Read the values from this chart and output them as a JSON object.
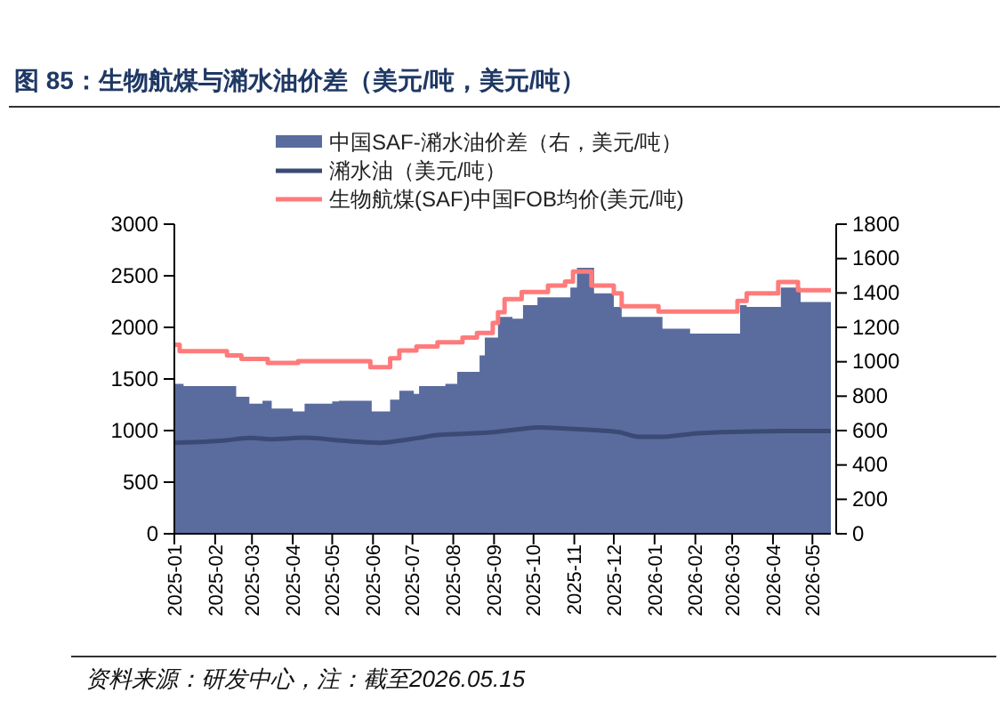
{
  "chart_data": {
    "type": "line",
    "title": "图 85：生物航煤与潲水油价差（美元/吨，美元/吨）",
    "annotations": [
      "资料来源：研发中心，注：截至2026.05.15"
    ],
    "xlim": [
      "2025-01-01",
      "2026-05-15"
    ],
    "xticks": [
      "2025-01",
      "2025-02",
      "2025-03",
      "2025-04",
      "2025-05",
      "2025-06",
      "2025-07",
      "2025-08",
      "2025-09",
      "2025-10",
      "2025-11",
      "2025-12",
      "2026-01",
      "2026-02",
      "2026-03",
      "2026-04",
      "2026-05"
    ],
    "ylim": [
      0,
      3000
    ],
    "yticks": [
      0,
      500,
      1000,
      1500,
      2000,
      2500,
      3000
    ],
    "y2lim": [
      0,
      1800
    ],
    "y2ticks": [
      0,
      200,
      400,
      600,
      800,
      1000,
      1200,
      1400,
      1600,
      1800
    ],
    "grid": false,
    "legend": "top left",
    "series": [
      {
        "name": "中国SAF-潲水油价差（右，美元/吨）",
        "type": "area",
        "axis": "y2",
        "color": "#5a6b9e",
        "x": [
          "2025-01-01",
          "2025-01-08",
          "2025-02-17",
          "2025-02-27",
          "2025-03-09",
          "2025-03-16",
          "2025-04-01",
          "2025-04-10",
          "2025-05-01",
          "2025-05-06",
          "2025-05-31",
          "2025-06-14",
          "2025-06-21",
          "2025-07-02",
          "2025-07-06",
          "2025-07-26",
          "2025-08-04",
          "2025-08-21",
          "2025-08-25",
          "2025-09-04",
          "2025-09-15",
          "2025-09-23",
          "2025-10-04",
          "2025-10-29",
          "2025-11-03",
          "2025-11-16",
          "2025-12-01",
          "2025-12-07",
          "2026-01-07",
          "2026-01-28",
          "2026-03-07",
          "2026-03-12",
          "2026-04-07",
          "2026-04-22",
          "2026-05-15"
        ],
        "values": [
          872,
          859,
          797,
          756,
          773,
          728,
          711,
          756,
          769,
          773,
          711,
          780,
          831,
          814,
          859,
          872,
          941,
          1037,
          1140,
          1261,
          1250,
          1329,
          1374,
          1432,
          1546,
          1398,
          1319,
          1261,
          1192,
          1164,
          1329,
          1319,
          1432,
          1347,
          1347
        ]
      },
      {
        "name": "潲水油（美元/吨）",
        "type": "line",
        "color": "#3b4a74",
        "x": [
          "2025-01-01",
          "2025-02-05",
          "2025-02-28",
          "2025-03-15",
          "2025-04-10",
          "2025-05-10",
          "2025-06-05",
          "2025-06-20",
          "2025-07-05",
          "2025-07-20",
          "2025-08-10",
          "2025-09-01",
          "2025-09-20",
          "2025-10-05",
          "2025-10-25",
          "2025-11-20",
          "2025-12-05",
          "2025-12-20",
          "2026-01-05",
          "2026-02-01",
          "2026-03-10",
          "2026-04-10",
          "2026-05-15"
        ],
        "values": [
          882,
          900,
          928,
          916,
          930,
          900,
          882,
          900,
          928,
          956,
          970,
          985,
          1013,
          1030,
          1020,
          1002,
          985,
          939,
          939,
          973,
          990,
          996,
          996
        ]
      },
      {
        "name": "生物航煤(SAF)中国FOB均价(美元/吨)",
        "type": "step",
        "color": "#ff7b7b",
        "x": [
          "2025-01-01",
          "2025-01-05",
          "2025-02-10",
          "2025-02-21",
          "2025-03-13",
          "2025-04-05",
          "2025-05-30",
          "2025-06-14",
          "2025-06-21",
          "2025-07-04",
          "2025-07-20",
          "2025-08-08",
          "2025-08-19",
          "2025-08-31",
          "2025-09-04",
          "2025-09-09",
          "2025-09-22",
          "2025-10-12",
          "2025-10-25",
          "2025-10-31",
          "2025-11-14",
          "2025-12-01",
          "2025-12-07",
          "2026-01-04",
          "2026-03-05",
          "2026-03-12",
          "2026-04-05",
          "2026-04-20",
          "2026-05-15"
        ],
        "values": [
          1832,
          1769,
          1729,
          1695,
          1655,
          1672,
          1615,
          1700,
          1775,
          1815,
          1855,
          1900,
          1947,
          2044,
          2147,
          2273,
          2342,
          2405,
          2445,
          2542,
          2405,
          2330,
          2204,
          2153,
          2256,
          2330,
          2439,
          2359,
          2359
        ]
      }
    ]
  }
}
